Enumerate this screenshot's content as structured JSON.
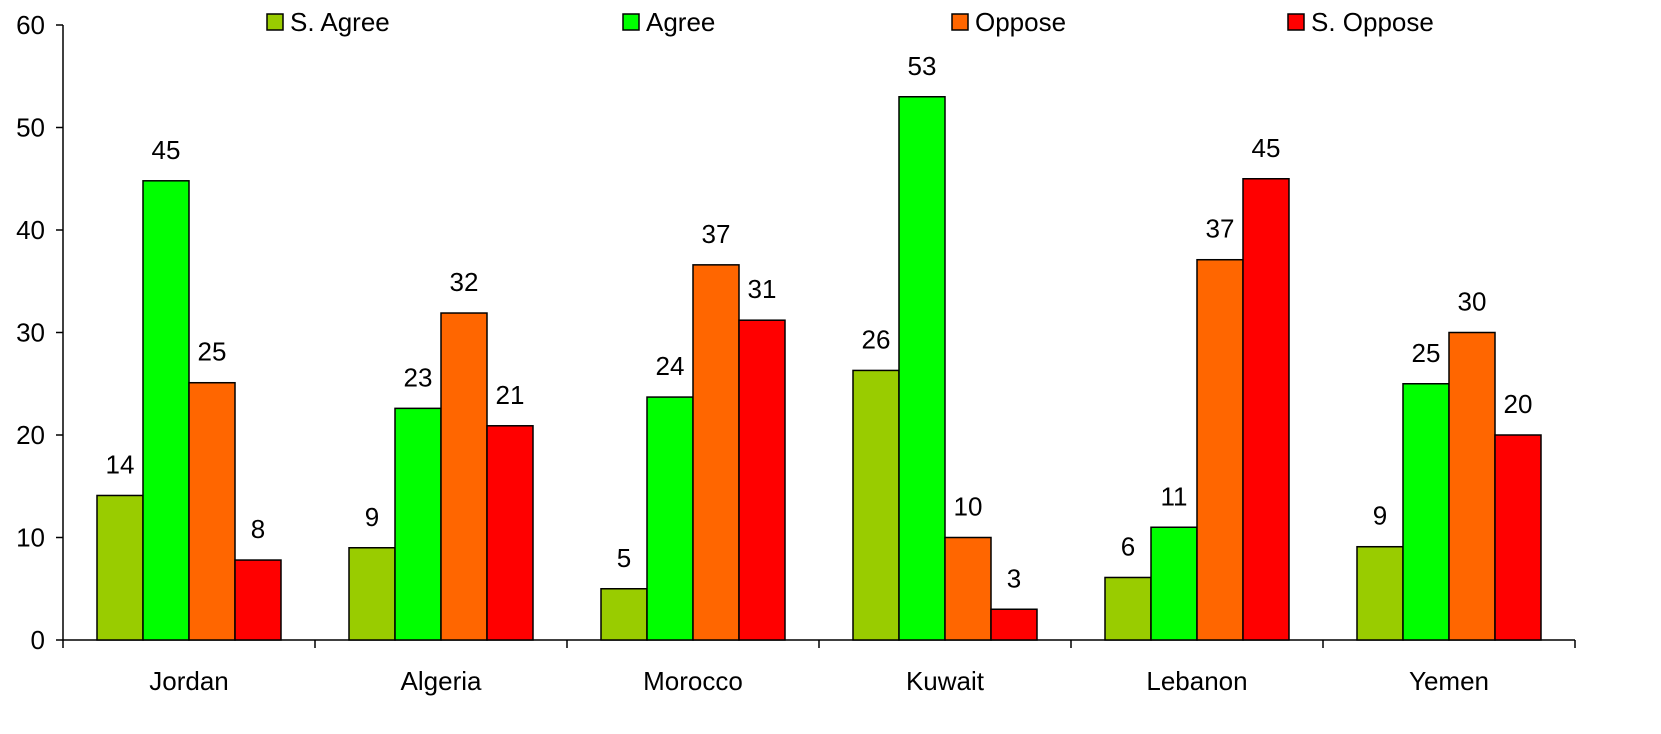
{
  "chart_data": {
    "type": "bar",
    "categories": [
      "Jordan",
      "Algeria",
      "Morocco",
      "Kuwait",
      "Lebanon",
      "Yemen"
    ],
    "series": [
      {
        "name": "S. Agree",
        "color": "#99cc00",
        "values": [
          14,
          9,
          5,
          26,
          6,
          9
        ]
      },
      {
        "name": "Agree",
        "color": "#00ff00",
        "values": [
          45,
          23,
          24,
          53,
          11,
          25
        ]
      },
      {
        "name": "Oppose",
        "color": "#ff6600",
        "values": [
          25,
          32,
          37,
          10,
          37,
          30
        ]
      },
      {
        "name": "S. Oppose",
        "color": "#ff0000",
        "values": [
          8,
          21,
          31,
          3,
          45,
          20
        ]
      }
    ],
    "exact_values": [
      [
        14.1,
        9.0,
        5.0,
        26.3,
        6.1,
        9.1
      ],
      [
        44.8,
        22.6,
        23.7,
        53.0,
        11.0,
        25.0
      ],
      [
        25.1,
        31.9,
        36.6,
        10.0,
        37.1,
        30.0
      ],
      [
        7.8,
        20.9,
        31.2,
        3.0,
        45.0,
        20.0
      ]
    ],
    "yticks": [
      "0",
      "10",
      "20",
      "30",
      "40",
      "50",
      "60"
    ],
    "ylim": [
      0,
      60
    ],
    "title": "",
    "xlabel": "",
    "ylabel": "",
    "legend_position": "top",
    "grid": false,
    "data_labels": true
  }
}
